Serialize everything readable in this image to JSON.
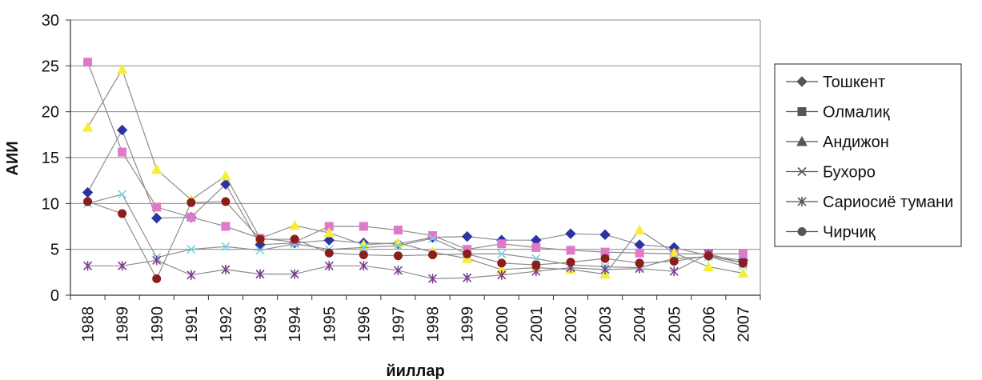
{
  "chart_data": {
    "type": "line",
    "title": "",
    "xlabel": "йиллар",
    "ylabel": "АИИ",
    "ylim": [
      0,
      30
    ],
    "yticks": [
      "0",
      "5",
      "10",
      "15",
      "20",
      "25",
      "30"
    ],
    "categories": [
      "1988",
      "1989",
      "1990",
      "1991",
      "1992",
      "1993",
      "1994",
      "1995",
      "1996",
      "1997",
      "1998",
      "1999",
      "2000",
      "2001",
      "2002",
      "2003",
      "2004",
      "2005",
      "2006",
      "2007"
    ],
    "grid": true,
    "legend_position": "right",
    "series": [
      {
        "name": "Тошкент",
        "color": "#2b35a0",
        "marker": "diamond",
        "values": [
          11.2,
          18.0,
          8.4,
          8.5,
          12.1,
          5.5,
          5.7,
          6.0,
          5.7,
          5.6,
          6.3,
          6.4,
          6.0,
          6.0,
          6.7,
          6.6,
          5.5,
          5.2,
          4.3,
          3.8
        ]
      },
      {
        "name": "Олмалиқ",
        "color": "#e07ac8",
        "marker": "square",
        "values": [
          25.4,
          15.6,
          9.6,
          8.5,
          7.5,
          6.2,
          5.8,
          7.5,
          7.5,
          7.1,
          6.5,
          5.0,
          5.6,
          5.2,
          4.9,
          4.7,
          4.6,
          4.5,
          4.5,
          4.5
        ]
      },
      {
        "name": "Андижон",
        "color": "#f5ef3c",
        "marker": "triangle",
        "values": [
          18.3,
          24.6,
          13.7,
          10.4,
          13.0,
          6.2,
          7.6,
          6.8,
          5.5,
          5.7,
          4.7,
          4.0,
          2.8,
          3.0,
          2.8,
          2.3,
          7.1,
          4.6,
          3.1,
          2.4
        ]
      },
      {
        "name": "Бухоро",
        "color": "#70d6e8",
        "marker": "x",
        "values": [
          10.0,
          11.0,
          4.1,
          5.0,
          5.3,
          4.9,
          5.6,
          5.0,
          5.2,
          5.4,
          6.2,
          4.5,
          4.5,
          4.0,
          3.3,
          3.1,
          3.0,
          4.0,
          4.2,
          3.2
        ]
      },
      {
        "name": "Сариосиё тумани",
        "color": "#7b3d8f",
        "marker": "star",
        "values": [
          3.2,
          3.2,
          3.8,
          2.2,
          2.8,
          2.3,
          2.3,
          3.2,
          3.2,
          2.7,
          1.8,
          1.9,
          2.2,
          2.6,
          3.0,
          2.8,
          2.9,
          2.6,
          4.5,
          3.5
        ]
      },
      {
        "name": "Чирчиқ",
        "color": "#8b1d1d",
        "marker": "circle",
        "values": [
          10.2,
          8.9,
          1.8,
          10.1,
          10.2,
          6.1,
          6.1,
          4.6,
          4.4,
          4.3,
          4.4,
          4.5,
          3.5,
          3.3,
          3.6,
          4.0,
          3.5,
          3.7,
          4.3,
          3.5
        ]
      }
    ]
  }
}
